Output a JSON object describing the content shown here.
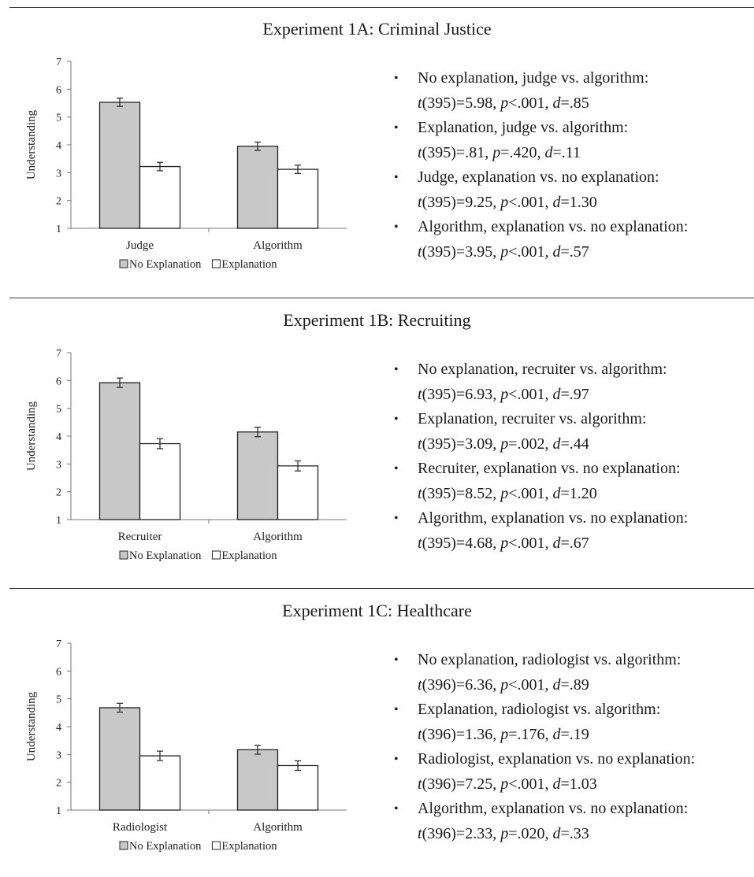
{
  "chart_data": [
    {
      "type": "bar",
      "title": "Experiment 1A: Criminal Justice",
      "ylabel": "Understanding",
      "ylim": [
        1,
        7
      ],
      "yticks": [
        1,
        2,
        3,
        4,
        5,
        6,
        7
      ],
      "categories": [
        "Judge",
        "Algorithm"
      ],
      "series": [
        {
          "name": "No Explanation",
          "values": [
            5.53,
            3.95
          ],
          "errors": [
            0.15,
            0.15
          ],
          "color": "#c8c8c8"
        },
        {
          "name": "Explanation",
          "values": [
            3.22,
            3.12
          ],
          "errors": [
            0.15,
            0.15
          ],
          "color": "#ffffff"
        }
      ],
      "legend": "bottom",
      "stats": [
        {
          "label": "No explanation, judge vs. algorithm:",
          "df": "395",
          "t": "5.98",
          "p_op": "<",
          "p": ".001",
          "d": ".85"
        },
        {
          "label": "Explanation, judge vs. algorithm:",
          "df": "395",
          "t": ".81",
          "p_op": "=",
          "p": ".420",
          "d": ".11"
        },
        {
          "label": "Judge, explanation vs. no explanation:",
          "df": "395",
          "t": "9.25",
          "p_op": "<",
          "p": ".001",
          "d": "1.30"
        },
        {
          "label": "Algorithm, explanation vs. no explanation:",
          "df": "395",
          "t": "3.95",
          "p_op": "<",
          "p": ".001",
          "d": ".57"
        }
      ]
    },
    {
      "type": "bar",
      "title": "Experiment 1B: Recruiting",
      "ylabel": "Understanding",
      "ylim": [
        1,
        7
      ],
      "yticks": [
        1,
        2,
        3,
        4,
        5,
        6,
        7
      ],
      "categories": [
        "Recruiter",
        "Algorithm"
      ],
      "series": [
        {
          "name": "No Explanation",
          "values": [
            5.92,
            4.15
          ],
          "errors": [
            0.17,
            0.17
          ],
          "color": "#c8c8c8"
        },
        {
          "name": "Explanation",
          "values": [
            3.73,
            2.93
          ],
          "errors": [
            0.18,
            0.18
          ],
          "color": "#ffffff"
        }
      ],
      "legend": "bottom",
      "stats": [
        {
          "label": "No explanation, recruiter vs. algorithm:",
          "df": "395",
          "t": "6.93",
          "p_op": "<",
          "p": ".001",
          "d": ".97"
        },
        {
          "label": "Explanation, recruiter vs. algorithm:",
          "df": "395",
          "t": "3.09",
          "p_op": "=",
          "p": ".002",
          "d": ".44"
        },
        {
          "label": "Recruiter, explanation vs. no explanation:",
          "df": "395",
          "t": "8.52",
          "p_op": "<",
          "p": ".001",
          "d": "1.20"
        },
        {
          "label": "Algorithm, explanation vs. no explanation:",
          "df": "395",
          "t": "4.68",
          "p_op": "<",
          "p": ".001",
          "d": ".67"
        }
      ]
    },
    {
      "type": "bar",
      "title": "Experiment 1C: Healthcare",
      "ylabel": "Understanding",
      "ylim": [
        1,
        7
      ],
      "yticks": [
        1,
        2,
        3,
        4,
        5,
        6,
        7
      ],
      "categories": [
        "Radiologist",
        "Algorithm"
      ],
      "series": [
        {
          "name": "No Explanation",
          "values": [
            4.68,
            3.17
          ],
          "errors": [
            0.16,
            0.16
          ],
          "color": "#c8c8c8"
        },
        {
          "name": "Explanation",
          "values": [
            2.95,
            2.6
          ],
          "errors": [
            0.17,
            0.17
          ],
          "color": "#ffffff"
        }
      ],
      "legend": "bottom",
      "stats": [
        {
          "label": "No explanation, radiologist vs. algorithm:",
          "df": "396",
          "t": "6.36",
          "p_op": "<",
          "p": ".001",
          "d": ".89"
        },
        {
          "label": "Explanation, radiologist vs. algorithm:",
          "df": "396",
          "t": "1.36",
          "p_op": "=",
          "p": ".176",
          "d": ".19"
        },
        {
          "label": "Radiologist, explanation vs. no explanation:",
          "df": "396",
          "t": "7.25",
          "p_op": "<",
          "p": ".001",
          "d": "1.03"
        },
        {
          "label": "Algorithm, explanation vs. no explanation:",
          "df": "396",
          "t": "2.33",
          "p_op": "=",
          "p": ".020",
          "d": ".33"
        }
      ]
    }
  ]
}
